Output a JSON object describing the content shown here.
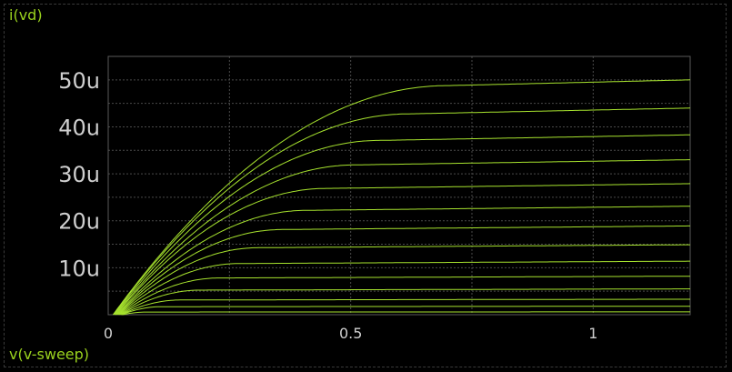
{
  "chart_data": {
    "type": "line",
    "ylabel": "i(vd)",
    "xlabel": "v(v-sweep)",
    "xlim": [
      0,
      1.2
    ],
    "ylim": [
      0,
      55
    ],
    "grid": true,
    "x_ticks": [
      {
        "value": 0,
        "label": "0"
      },
      {
        "value": 0.5,
        "label": "0.5"
      },
      {
        "value": 1,
        "label": "1"
      }
    ],
    "y_ticks": [
      {
        "value": 10,
        "label": "10u"
      },
      {
        "value": 20,
        "label": "20u"
      },
      {
        "value": 30,
        "label": "30u"
      },
      {
        "value": 40,
        "label": "40u"
      },
      {
        "value": 50,
        "label": "50u"
      }
    ],
    "x_grid": [
      0,
      0.25,
      0.5,
      0.75,
      1
    ],
    "y_grid": [
      5,
      10,
      15,
      20,
      25,
      30,
      35,
      40,
      45,
      50
    ],
    "curve_color": "#a6e22e",
    "series_note_unit": "uA",
    "series": [
      {
        "values_at_x_1.2": 50.0,
        "x_sat": 0.7
      },
      {
        "values_at_x_1.2": 44.0,
        "x_sat": 0.62
      },
      {
        "values_at_x_1.2": 38.3,
        "x_sat": 0.56
      },
      {
        "values_at_x_1.2": 33.0,
        "x_sat": 0.51
      },
      {
        "values_at_x_1.2": 27.9,
        "x_sat": 0.45
      },
      {
        "values_at_x_1.2": 23.1,
        "x_sat": 0.41
      },
      {
        "values_at_x_1.2": 18.9,
        "x_sat": 0.36
      },
      {
        "values_at_x_1.2": 14.9,
        "x_sat": 0.31
      },
      {
        "values_at_x_1.2": 11.4,
        "x_sat": 0.27
      },
      {
        "values_at_x_1.2": 8.2,
        "x_sat": 0.23
      },
      {
        "values_at_x_1.2": 5.5,
        "x_sat": 0.19
      },
      {
        "values_at_x_1.2": 3.3,
        "x_sat": 0.15
      },
      {
        "values_at_x_1.2": 1.8,
        "x_sat": 0.11
      },
      {
        "values_at_x_1.2": 0.6,
        "x_sat": 0.08
      }
    ]
  }
}
